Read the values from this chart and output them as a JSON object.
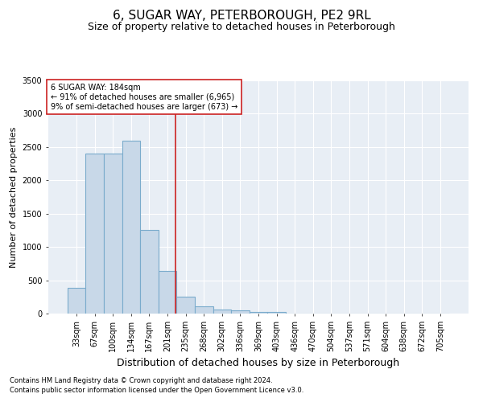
{
  "title": "6, SUGAR WAY, PETERBOROUGH, PE2 9RL",
  "subtitle": "Size of property relative to detached houses in Peterborough",
  "xlabel": "Distribution of detached houses by size in Peterborough",
  "ylabel": "Number of detached properties",
  "footnote1": "Contains HM Land Registry data © Crown copyright and database right 2024.",
  "footnote2": "Contains public sector information licensed under the Open Government Licence v3.0.",
  "categories": [
    "33sqm",
    "67sqm",
    "100sqm",
    "134sqm",
    "167sqm",
    "201sqm",
    "235sqm",
    "268sqm",
    "302sqm",
    "336sqm",
    "369sqm",
    "403sqm",
    "436sqm",
    "470sqm",
    "504sqm",
    "537sqm",
    "571sqm",
    "604sqm",
    "638sqm",
    "672sqm",
    "705sqm"
  ],
  "values": [
    390,
    2400,
    2400,
    2600,
    1250,
    640,
    250,
    105,
    55,
    45,
    30,
    25,
    0,
    0,
    0,
    0,
    0,
    0,
    0,
    0,
    0
  ],
  "bar_color": "#c8d8e8",
  "bar_edge_color": "#7aabcc",
  "vline_x": 5.45,
  "vline_color": "#cc2222",
  "annotation_text": "6 SUGAR WAY: 184sqm\n← 91% of detached houses are smaller (6,965)\n9% of semi-detached houses are larger (673) →",
  "annotation_box_color": "#ffffff",
  "annotation_box_edge": "#cc2222",
  "ylim": [
    0,
    3500
  ],
  "yticks": [
    0,
    500,
    1000,
    1500,
    2000,
    2500,
    3000,
    3500
  ],
  "bg_color": "#e8eef5",
  "plot_bg_color": "#e8eef5",
  "title_fontsize": 11,
  "subtitle_fontsize": 9,
  "xlabel_fontsize": 9,
  "ylabel_fontsize": 8,
  "tick_fontsize": 7,
  "annot_fontsize": 7
}
